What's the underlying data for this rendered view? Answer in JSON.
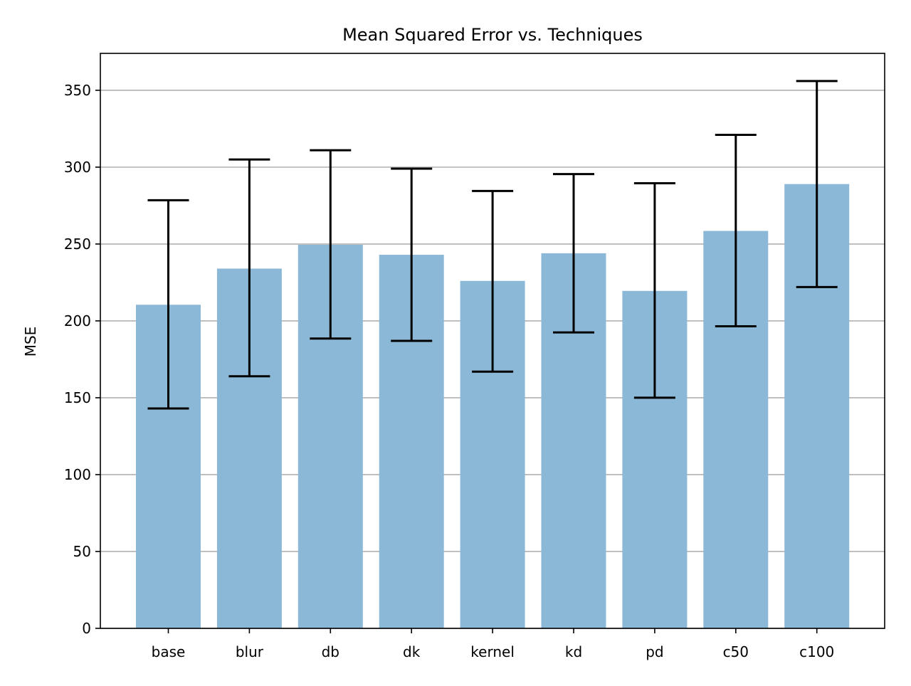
{
  "chart_data": {
    "type": "bar",
    "title": "Mean Squared Error vs. Techniques",
    "xlabel": "",
    "ylabel": "MSE",
    "categories": [
      "base",
      "blur",
      "db",
      "dk",
      "kernel",
      "kd",
      "pd",
      "c50",
      "c100"
    ],
    "values": [
      210.5,
      234.0,
      249.5,
      243.0,
      226.0,
      244.0,
      219.5,
      258.5,
      289.0
    ],
    "error_low": [
      143.0,
      164.0,
      188.5,
      187.0,
      167.0,
      192.5,
      150.0,
      196.5,
      222.0
    ],
    "error_high": [
      278.5,
      305.0,
      311.0,
      299.0,
      284.5,
      295.5,
      289.5,
      321.0,
      356.0
    ],
    "ylim": [
      0,
      374
    ],
    "yticks": [
      0,
      50,
      100,
      150,
      200,
      250,
      300,
      350
    ],
    "grid": "y",
    "legend": "none",
    "bar_color": "#8cb8d8",
    "error_color": "#000000",
    "grid_color": "#b0b0b0"
  }
}
